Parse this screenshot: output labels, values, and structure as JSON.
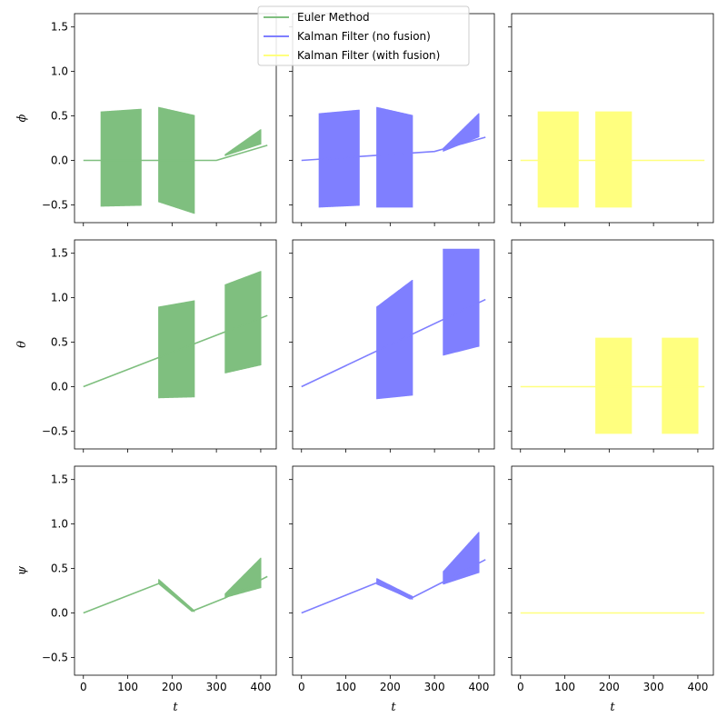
{
  "chart_data": {
    "type": "line",
    "layout": "3x3 grid, shared x and y axes",
    "rows": [
      "ϕ",
      "θ",
      "ψ"
    ],
    "xlabel": "t",
    "xlim": [
      -20,
      435
    ],
    "ylim": [
      -0.7,
      1.65
    ],
    "xticks": [
      0,
      100,
      200,
      300,
      400
    ],
    "yticks": [
      -0.5,
      0.0,
      0.5,
      1.0,
      1.5
    ],
    "ytick_labels": [
      "−0.5",
      "0.0",
      "0.5",
      "1.0",
      "1.5"
    ],
    "legend": {
      "location": "top-center",
      "entries": [
        "Euler Method",
        "Kalman Filter (no fusion)",
        "Kalman Filter (with fusion)"
      ]
    },
    "series": [
      {
        "name": "Euler Method",
        "color": "#7fbf7f",
        "panels": {
          "phi": {
            "baseline": [
              [
                0,
                0.0
              ],
              [
                300,
                0.0
              ],
              [
                415,
                0.17
              ]
            ],
            "bands": [
              [
                40,
                130,
                0.55,
                -0.52,
                0.58,
                -0.51
              ],
              [
                170,
                250,
                0.6,
                -0.47,
                0.51,
                -0.6
              ],
              [
                320,
                400,
                0.07,
                0.05,
                0.35,
                0.18
              ]
            ]
          },
          "theta": {
            "baseline": [
              [
                0,
                0.0
              ],
              [
                415,
                0.8
              ]
            ],
            "bands": [
              [
                170,
                250,
                0.9,
                -0.13,
                0.97,
                -0.12
              ],
              [
                320,
                400,
                1.15,
                0.15,
                1.3,
                0.24
              ]
            ]
          },
          "psi": {
            "baseline": [
              [
                0,
                0.0
              ],
              [
                170,
                0.33
              ],
              [
                245,
                0.02
              ],
              [
                320,
                0.17
              ],
              [
                415,
                0.41
              ]
            ],
            "bands": [
              [
                170,
                250,
                0.38,
                0.33,
                0.03,
                0.01
              ],
              [
                320,
                400,
                0.22,
                0.17,
                0.62,
                0.28
              ]
            ]
          }
        }
      },
      {
        "name": "Kalman Filter (no fusion)",
        "color": "#7f7fff",
        "panels": {
          "phi": {
            "baseline": [
              [
                0,
                0.0
              ],
              [
                300,
                0.1
              ],
              [
                415,
                0.26
              ]
            ],
            "bands": [
              [
                40,
                130,
                0.53,
                -0.53,
                0.57,
                -0.51
              ],
              [
                170,
                250,
                0.6,
                -0.53,
                0.51,
                -0.53
              ],
              [
                320,
                400,
                0.14,
                0.1,
                0.53,
                0.26
              ]
            ]
          },
          "theta": {
            "baseline": [
              [
                0,
                0.0
              ],
              [
                415,
                0.98
              ]
            ],
            "bands": [
              [
                170,
                250,
                0.9,
                -0.14,
                1.2,
                -0.1
              ],
              [
                320,
                400,
                1.55,
                0.35,
                1.55,
                0.45
              ]
            ]
          },
          "psi": {
            "baseline": [
              [
                0,
                0.0
              ],
              [
                170,
                0.34
              ],
              [
                245,
                0.16
              ],
              [
                320,
                0.35
              ],
              [
                415,
                0.6
              ]
            ],
            "bands": [
              [
                170,
                250,
                0.39,
                0.32,
                0.19,
                0.15
              ],
              [
                320,
                400,
                0.47,
                0.32,
                0.91,
                0.45
              ]
            ]
          }
        }
      },
      {
        "name": "Kalman Filter (with fusion)",
        "color": "#ffff7f",
        "panels": {
          "phi": {
            "baseline": [
              [
                0,
                0.0
              ],
              [
                415,
                0.0
              ]
            ],
            "bands": [
              [
                40,
                130,
                0.55,
                -0.53,
                0.55,
                -0.53
              ],
              [
                170,
                250,
                0.55,
                -0.53,
                0.55,
                -0.53
              ]
            ]
          },
          "theta": {
            "baseline": [
              [
                0,
                0.0
              ],
              [
                415,
                0.0
              ]
            ],
            "bands": [
              [
                170,
                250,
                0.55,
                -0.53,
                0.55,
                -0.53
              ],
              [
                320,
                400,
                0.55,
                -0.53,
                0.55,
                -0.53
              ]
            ]
          },
          "psi": {
            "baseline": [
              [
                0,
                0.0
              ],
              [
                415,
                0.0
              ]
            ],
            "bands": []
          }
        }
      }
    ]
  }
}
